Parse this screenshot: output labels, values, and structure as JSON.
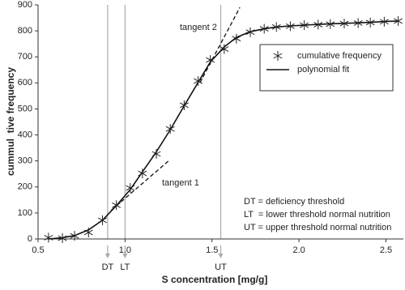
{
  "chart_data": {
    "type": "scatter-fit",
    "xlabel": "S concentration [mg/g]",
    "ylabel": "cummul  tive frequency",
    "x": [
      0.56,
      0.64,
      0.71,
      0.79,
      0.87,
      0.95,
      1.03,
      1.1,
      1.18,
      1.26,
      1.34,
      1.42,
      1.49,
      1.57,
      1.64,
      1.72,
      1.8,
      1.87,
      1.95,
      2.03,
      2.11,
      2.18,
      2.26,
      2.34,
      2.41,
      2.49,
      2.57
    ],
    "series": [
      {
        "name": "cumulative frequency",
        "color": "#222222",
        "marker": "asterisk",
        "values": [
          5,
          3,
          12,
          25,
          72,
          130,
          196,
          252,
          327,
          423,
          514,
          607,
          688,
          730,
          770,
          795,
          808,
          815,
          818,
          822,
          824,
          826,
          828,
          830,
          832,
          835,
          838
        ]
      },
      {
        "name": "polynomial fit",
        "color": "#111111",
        "marker": "line",
        "values": [
          0,
          5,
          13,
          35,
          72,
          128,
          190,
          258,
          335,
          420,
          512,
          602,
          680,
          738,
          775,
          797,
          808,
          815,
          819,
          822,
          825,
          827,
          829,
          831,
          833,
          836,
          838
        ]
      }
    ],
    "tangents": [
      {
        "label": "tangent 1",
        "x": [
          0.92,
          1.25
        ],
        "y": [
          110,
          300
        ]
      },
      {
        "label": "tangent 2",
        "x": [
          1.43,
          1.66
        ],
        "y": [
          600,
          890
        ]
      }
    ],
    "thresholds": [
      {
        "label": "DT",
        "x": 0.9
      },
      {
        "label": "LT",
        "x": 1.0
      },
      {
        "label": "UT",
        "x": 1.55
      }
    ],
    "notes": [
      "DT = deficiency threshold",
      "LT  = lower threshold normal nutrition",
      "UT = upper threshold normal nutrition"
    ],
    "xlim": [
      0.5,
      2.6
    ],
    "ylim": [
      0,
      900
    ],
    "xticks": [
      0.5,
      {
        "value": 1,
        "label": "1.0"
      },
      1.5,
      {
        "value": 2,
        "label": "2.0"
      },
      2.5
    ],
    "yticks": [
      0,
      100,
      200,
      300,
      400,
      500,
      600,
      700,
      800,
      900
    ],
    "grid": false,
    "legend": "upper-right"
  }
}
